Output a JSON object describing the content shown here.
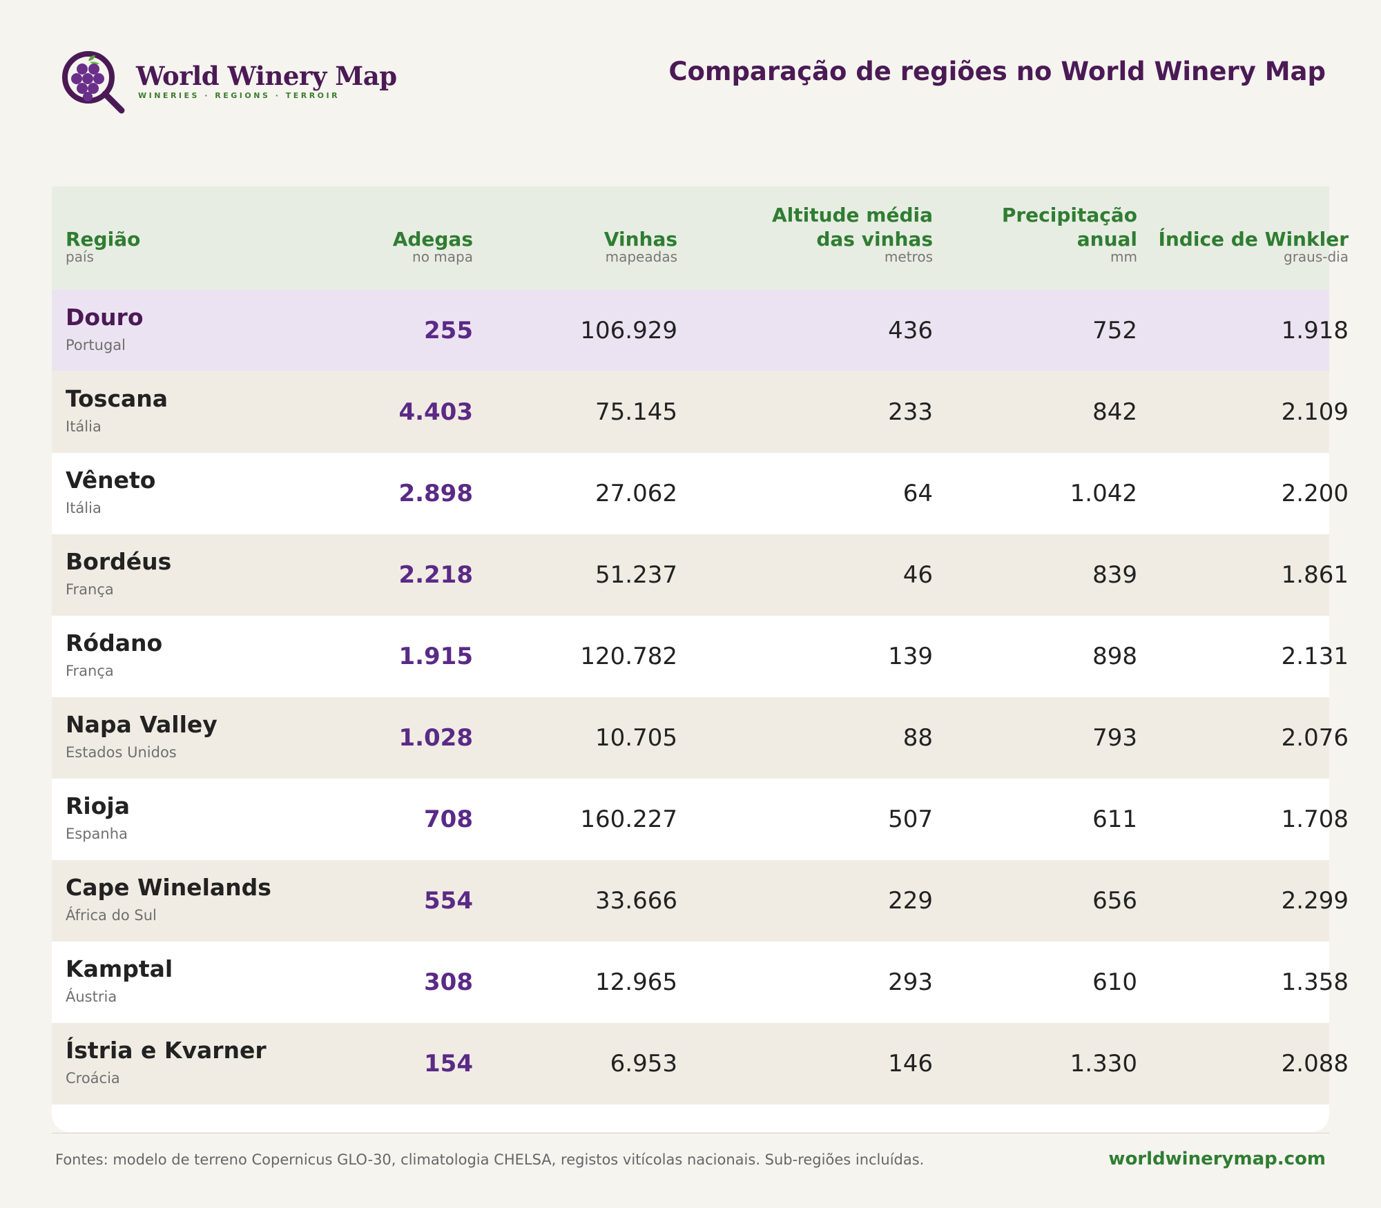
{
  "brand": {
    "name": "World Winery Map",
    "tagline": "WINERIES · REGIONS · TERROIR",
    "logo_icon": "grape-magnifier-icon"
  },
  "page_title": "Comparação de regiões no World Winery Map",
  "colors": {
    "brand_purple": "#4b1a55",
    "accent_green": "#2f7d32",
    "highlight_row": "#ece3f2",
    "shaded_row": "#f0ece3",
    "header_bg": "#e8ede3"
  },
  "table": {
    "columns": [
      {
        "title": "Região",
        "unit": "país"
      },
      {
        "title": "Adegas",
        "unit": "no mapa"
      },
      {
        "title": "Vinhas",
        "unit": "mapeadas"
      },
      {
        "title": "Altitude média das vinhas",
        "unit": "metros"
      },
      {
        "title": "Precipitação anual",
        "unit": "mm"
      },
      {
        "title": "Índice de Winkler",
        "unit": "graus-dia"
      }
    ],
    "rows": [
      {
        "region": "Douro",
        "country": "Portugal",
        "adegas": "255",
        "vinhas": "106.929",
        "altitude": "436",
        "precipitacao": "752",
        "winkler": "1.918"
      },
      {
        "region": "Toscana",
        "country": "Itália",
        "adegas": "4.403",
        "vinhas": "75.145",
        "altitude": "233",
        "precipitacao": "842",
        "winkler": "2.109"
      },
      {
        "region": "Vêneto",
        "country": "Itália",
        "adegas": "2.898",
        "vinhas": "27.062",
        "altitude": "64",
        "precipitacao": "1.042",
        "winkler": "2.200"
      },
      {
        "region": "Bordéus",
        "country": "França",
        "adegas": "2.218",
        "vinhas": "51.237",
        "altitude": "46",
        "precipitacao": "839",
        "winkler": "1.861"
      },
      {
        "region": "Ródano",
        "country": "França",
        "adegas": "1.915",
        "vinhas": "120.782",
        "altitude": "139",
        "precipitacao": "898",
        "winkler": "2.131"
      },
      {
        "region": "Napa Valley",
        "country": "Estados Unidos",
        "adegas": "1.028",
        "vinhas": "10.705",
        "altitude": "88",
        "precipitacao": "793",
        "winkler": "2.076"
      },
      {
        "region": "Rioja",
        "country": "Espanha",
        "adegas": "708",
        "vinhas": "160.227",
        "altitude": "507",
        "precipitacao": "611",
        "winkler": "1.708"
      },
      {
        "region": "Cape Winelands",
        "country": "África do Sul",
        "adegas": "554",
        "vinhas": "33.666",
        "altitude": "229",
        "precipitacao": "656",
        "winkler": "2.299"
      },
      {
        "region": "Kamptal",
        "country": "Áustria",
        "adegas": "308",
        "vinhas": "12.965",
        "altitude": "293",
        "precipitacao": "610",
        "winkler": "1.358"
      },
      {
        "region": "Ístria e Kvarner",
        "country": "Croácia",
        "adegas": "154",
        "vinhas": "6.953",
        "altitude": "146",
        "precipitacao": "1.330",
        "winkler": "2.088"
      }
    ]
  },
  "footer": {
    "sources": "Fontes: modelo de terreno Copernicus GLO-30, climatologia CHELSA, registos vitícolas nacionais. Sub-regiões incluídas.",
    "link": "worldwinerymap.com"
  }
}
